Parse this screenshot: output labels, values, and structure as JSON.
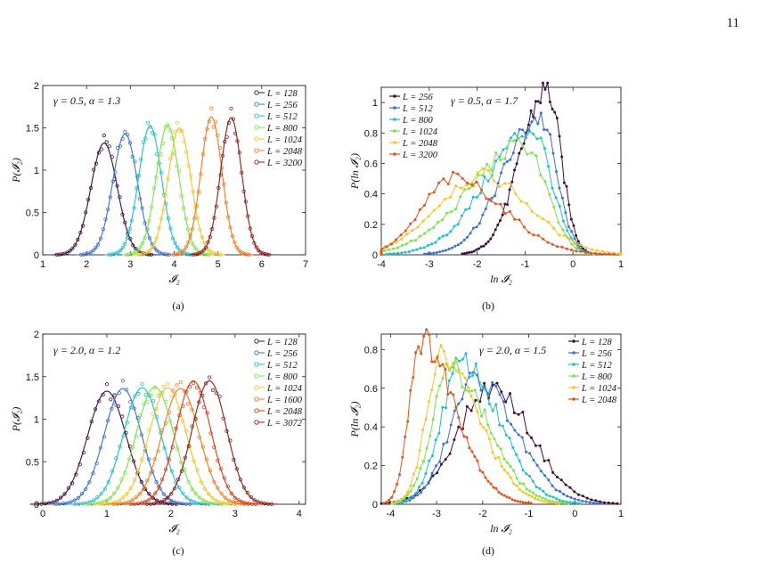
{
  "page_number": "11",
  "captions": [
    "(a)",
    "(b)",
    "(c)",
    "(d)"
  ],
  "chart_data": [
    {
      "type": "line",
      "panel": "a",
      "xlabel": "𝓘₂",
      "ylabel": "P(𝓘₂)",
      "annotation": "γ = 0.5, α = 1.3",
      "xlim": [
        1,
        7
      ],
      "ylim": [
        0,
        2
      ],
      "xticks": [
        1,
        2,
        3,
        4,
        5,
        6,
        7
      ],
      "yticks": [
        0,
        0.5,
        1,
        1.5,
        2
      ],
      "legend_position": "top-right",
      "markers": "open-circles-with-fit-line",
      "series": [
        {
          "name": "L = 128",
          "color": "#3b0f3a",
          "mean": 2.4,
          "sd": 0.3,
          "peak": 1.32
        },
        {
          "name": "L = 256",
          "color": "#3b6fd1",
          "mean": 2.88,
          "sd": 0.28,
          "peak": 1.43
        },
        {
          "name": "L = 512",
          "color": "#19c2c6",
          "mean": 3.45,
          "sd": 0.26,
          "peak": 1.52
        },
        {
          "name": "L = 800",
          "color": "#7de34b",
          "mean": 3.85,
          "sd": 0.26,
          "peak": 1.53
        },
        {
          "name": "L = 1024",
          "color": "#f2c52a",
          "mean": 4.12,
          "sd": 0.26,
          "peak": 1.5
        },
        {
          "name": "L = 2048",
          "color": "#f07a1f",
          "mean": 4.85,
          "sd": 0.24,
          "peak": 1.63
        },
        {
          "name": "L = 3200",
          "color": "#8b1b16",
          "mean": 5.3,
          "sd": 0.24,
          "peak": 1.62
        }
      ]
    },
    {
      "type": "line",
      "panel": "b",
      "xlabel": "ln 𝓘₂",
      "ylabel": "P(ln 𝓘₂)",
      "annotation": "γ = 0.5, α = 1.7",
      "xlim": [
        -4,
        1
      ],
      "ylim": [
        0,
        1.1
      ],
      "xticks": [
        -4,
        -3,
        -2,
        -1,
        0,
        1
      ],
      "yticks": [
        0,
        0.2,
        0.4,
        0.6,
        0.8,
        1
      ],
      "legend_position": "top-left",
      "markers": "connected-dots",
      "series": [
        {
          "name": "L = 256",
          "color": "#3b0f3a",
          "mode": -0.55,
          "peak": 1.08,
          "left_width": 0.55,
          "right_width": 0.3
        },
        {
          "name": "L = 512",
          "color": "#3b6fd1",
          "mode": -0.7,
          "peak": 0.9,
          "left_width": 0.75,
          "right_width": 0.35
        },
        {
          "name": "L = 800",
          "color": "#19c2c6",
          "mode": -0.85,
          "peak": 0.82,
          "left_width": 0.95,
          "right_width": 0.4
        },
        {
          "name": "L = 1024",
          "color": "#7de34b",
          "mode": -1.0,
          "peak": 0.72,
          "left_width": 1.15,
          "right_width": 0.45
        },
        {
          "name": "L = 2048",
          "color": "#f2c52a",
          "mode": -1.9,
          "peak": 0.52,
          "left_width": 0.95,
          "right_width": 1.0
        },
        {
          "name": "L = 3200",
          "color": "#e4521b",
          "mode": -2.5,
          "peak": 0.5,
          "left_width": 0.65,
          "right_width": 1.05
        }
      ]
    },
    {
      "type": "line",
      "panel": "c",
      "xlabel": "𝓘₂",
      "ylabel": "P(𝓘₂)",
      "annotation": "γ = 2.0, α = 1.2",
      "xlim": [
        0,
        4.1
      ],
      "ylim": [
        0,
        2
      ],
      "xticks": [
        0,
        1,
        2,
        3,
        4
      ],
      "yticks": [
        0,
        0.5,
        1,
        1.5,
        2
      ],
      "legend_position": "top-right",
      "markers": "open-circles-with-fit-line",
      "series": [
        {
          "name": "L = 128",
          "color": "#3b0f3a",
          "mean": 1.0,
          "sd": 0.3,
          "peak": 1.33
        },
        {
          "name": "L = 256",
          "color": "#3b6fd1",
          "mean": 1.25,
          "sd": 0.29,
          "peak": 1.36
        },
        {
          "name": "L = 512",
          "color": "#19c2c6",
          "mean": 1.55,
          "sd": 0.29,
          "peak": 1.37
        },
        {
          "name": "L = 800",
          "color": "#7de34b",
          "mean": 1.75,
          "sd": 0.29,
          "peak": 1.38
        },
        {
          "name": "L = 1024",
          "color": "#f2c52a",
          "mean": 1.95,
          "sd": 0.29,
          "peak": 1.37
        },
        {
          "name": "L = 1600",
          "color": "#f07a1f",
          "mean": 2.15,
          "sd": 0.29,
          "peak": 1.36
        },
        {
          "name": "L = 2048",
          "color": "#d93a14",
          "mean": 2.35,
          "sd": 0.27,
          "peak": 1.45
        },
        {
          "name": "L = 3072",
          "color": "#8b1b16",
          "mean": 2.6,
          "sd": 0.27,
          "peak": 1.45
        }
      ]
    },
    {
      "type": "line",
      "panel": "d",
      "xlabel": "ln 𝓘₂",
      "ylabel": "P(ln 𝓘₂)",
      "annotation": "γ = 2.0, α = 1.5",
      "xlim": [
        -4.2,
        1
      ],
      "ylim": [
        0,
        0.88
      ],
      "xticks": [
        -4,
        -3,
        -2,
        -1,
        0,
        1
      ],
      "yticks": [
        0,
        0.2,
        0.4,
        0.6,
        0.8
      ],
      "legend_position": "top-right",
      "markers": "connected-dots",
      "series": [
        {
          "name": "L = 128",
          "color": "#3b0f3a",
          "mode": -1.8,
          "peak": 0.6,
          "left_width": 0.75,
          "right_width": 0.85
        },
        {
          "name": "L = 256",
          "color": "#3b6fd1",
          "mode": -2.15,
          "peak": 0.65,
          "left_width": 0.55,
          "right_width": 0.85
        },
        {
          "name": "L = 512",
          "color": "#19c2c6",
          "mode": -2.45,
          "peak": 0.73,
          "left_width": 0.45,
          "right_width": 0.8
        },
        {
          "name": "L = 800",
          "color": "#7de34b",
          "mode": -2.7,
          "peak": 0.7,
          "left_width": 0.4,
          "right_width": 0.8
        },
        {
          "name": "L = 1024",
          "color": "#f2c52a",
          "mode": -2.9,
          "peak": 0.76,
          "left_width": 0.33,
          "right_width": 0.8
        },
        {
          "name": "L = 2048",
          "color": "#e4521b",
          "mode": -3.35,
          "peak": 0.85,
          "left_width": 0.25,
          "right_width": 0.75
        }
      ]
    }
  ]
}
